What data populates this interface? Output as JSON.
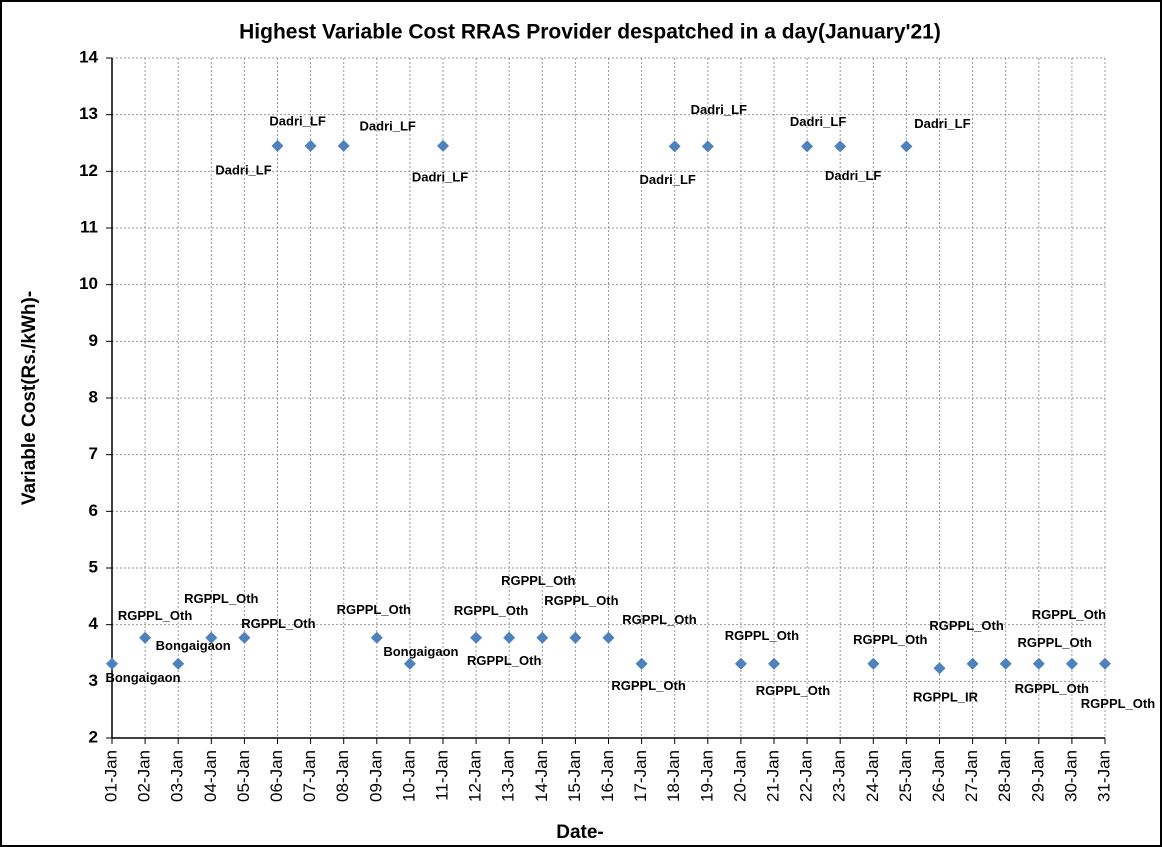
{
  "chart_data": {
    "type": "scatter",
    "title": "Highest Variable Cost RRAS Provider despatched in a day(January'21)",
    "x_label": "Date-",
    "y_label": "Variable Cost(Rs./kWh)-",
    "categories": [
      "01-Jan",
      "02-Jan",
      "03-Jan",
      "04-Jan",
      "05-Jan",
      "06-Jan",
      "07-Jan",
      "08-Jan",
      "09-Jan",
      "10-Jan",
      "11-Jan",
      "12-Jan",
      "13-Jan",
      "14-Jan",
      "15-Jan",
      "16-Jan",
      "17-Jan",
      "18-Jan",
      "19-Jan",
      "20-Jan",
      "21-Jan",
      "22-Jan",
      "23-Jan",
      "24-Jan",
      "25-Jan",
      "26-Jan",
      "27-Jan",
      "28-Jan",
      "29-Jan",
      "30-Jan",
      "31-Jan"
    ],
    "values": [
      3.31,
      3.77,
      3.31,
      3.77,
      3.77,
      12.45,
      12.45,
      12.45,
      3.77,
      3.31,
      12.45,
      3.77,
      3.77,
      3.77,
      3.77,
      3.77,
      3.31,
      12.44,
      12.44,
      3.31,
      3.31,
      12.44,
      12.44,
      3.31,
      12.44,
      3.23,
      3.31,
      3.31,
      3.31,
      3.31,
      3.31
    ],
    "point_labels": [
      "Bongaigaon",
      "RGPPL_Oth",
      "Bongaigaon",
      "RGPPL_Oth",
      "RGPPL_Oth",
      "Dadri_LF",
      "Dadri_LF",
      "Dadri_LF",
      "RGPPL_Oth",
      "Bongaigaon",
      "Dadri_LF",
      "RGPPL_Oth",
      "RGPPL_Oth",
      "RGPPL_Oth",
      "RGPPL_Oth",
      "RGPPL_Oth",
      "RGPPL_Oth",
      "Dadri_LF",
      "Dadri_LF",
      "RGPPL_Oth",
      "RGPPL_Oth",
      "Dadri_LF",
      "Dadri_LF",
      "RGPPL_Oth",
      "Dadri_LF",
      "RGPPL_IR",
      "RGPPL_Oth",
      "RGPPL_Oth",
      "RGPPL_Oth",
      "RGPPL_Oth",
      "RGPPL_Oth"
    ],
    "color": "#4f81bd",
    "ylim": [
      2,
      14
    ],
    "yticks": [
      2,
      3,
      4,
      5,
      6,
      7,
      8,
      9,
      10,
      11,
      12,
      13,
      14
    ],
    "grid": true
  }
}
